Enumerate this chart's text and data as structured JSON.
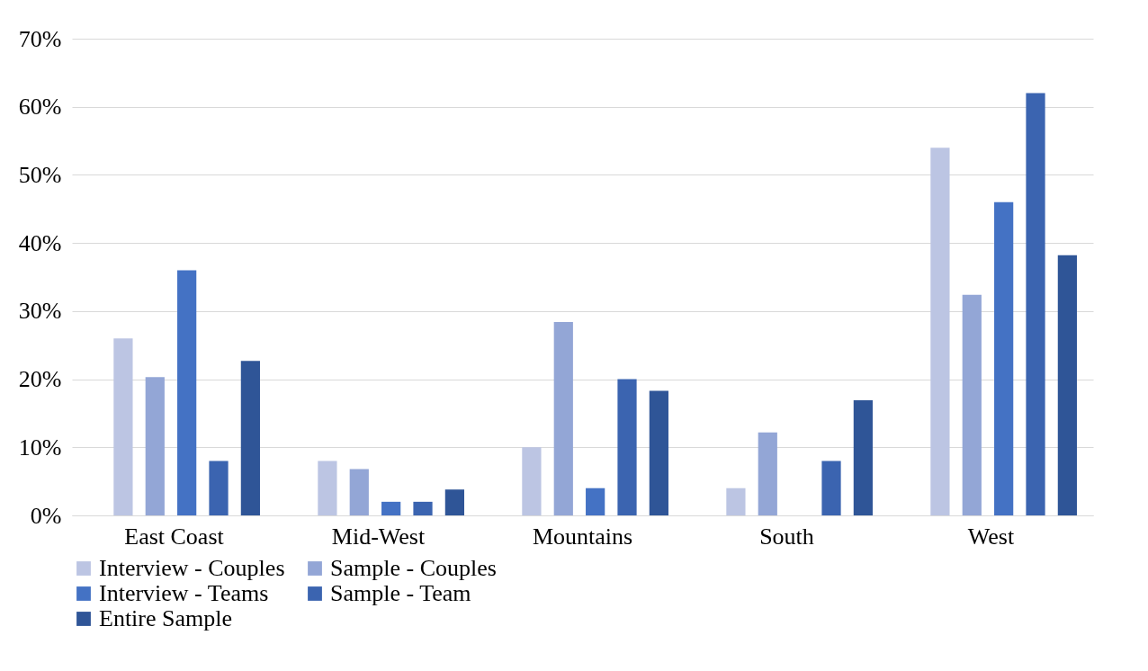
{
  "chart_data": {
    "type": "bar",
    "categories": [
      "East Coast",
      "Mid-West",
      "Mountains",
      "South",
      "West"
    ],
    "series": [
      {
        "name": "Interview - Couples",
        "color": "#bcc5e3",
        "values": [
          26,
          8,
          10,
          4,
          54
        ]
      },
      {
        "name": "Sample - Couples",
        "color": "#93a6d6",
        "values": [
          20.3,
          6.8,
          28.4,
          12.2,
          32.4
        ]
      },
      {
        "name": "Interview - Teams",
        "color": "#4472c4",
        "values": [
          36,
          2,
          4,
          0,
          46
        ]
      },
      {
        "name": "Sample - Team",
        "color": "#3b64b0",
        "values": [
          8,
          2,
          20,
          8,
          62
        ]
      },
      {
        "name": "Entire Sample",
        "color": "#2f5597",
        "values": [
          22.7,
          3.8,
          18.3,
          16.9,
          38.2
        ]
      }
    ],
    "ylim": [
      0,
      70
    ],
    "yticks": [
      {
        "value": 0,
        "label": "0%"
      },
      {
        "value": 10,
        "label": "10%"
      },
      {
        "value": 20,
        "label": "20%"
      },
      {
        "value": 30,
        "label": "30%"
      },
      {
        "value": 40,
        "label": "40%"
      },
      {
        "value": 50,
        "label": "50%"
      },
      {
        "value": 60,
        "label": "60%"
      },
      {
        "value": 70,
        "label": "70%"
      }
    ],
    "grid": "y",
    "legend": "bottom"
  }
}
